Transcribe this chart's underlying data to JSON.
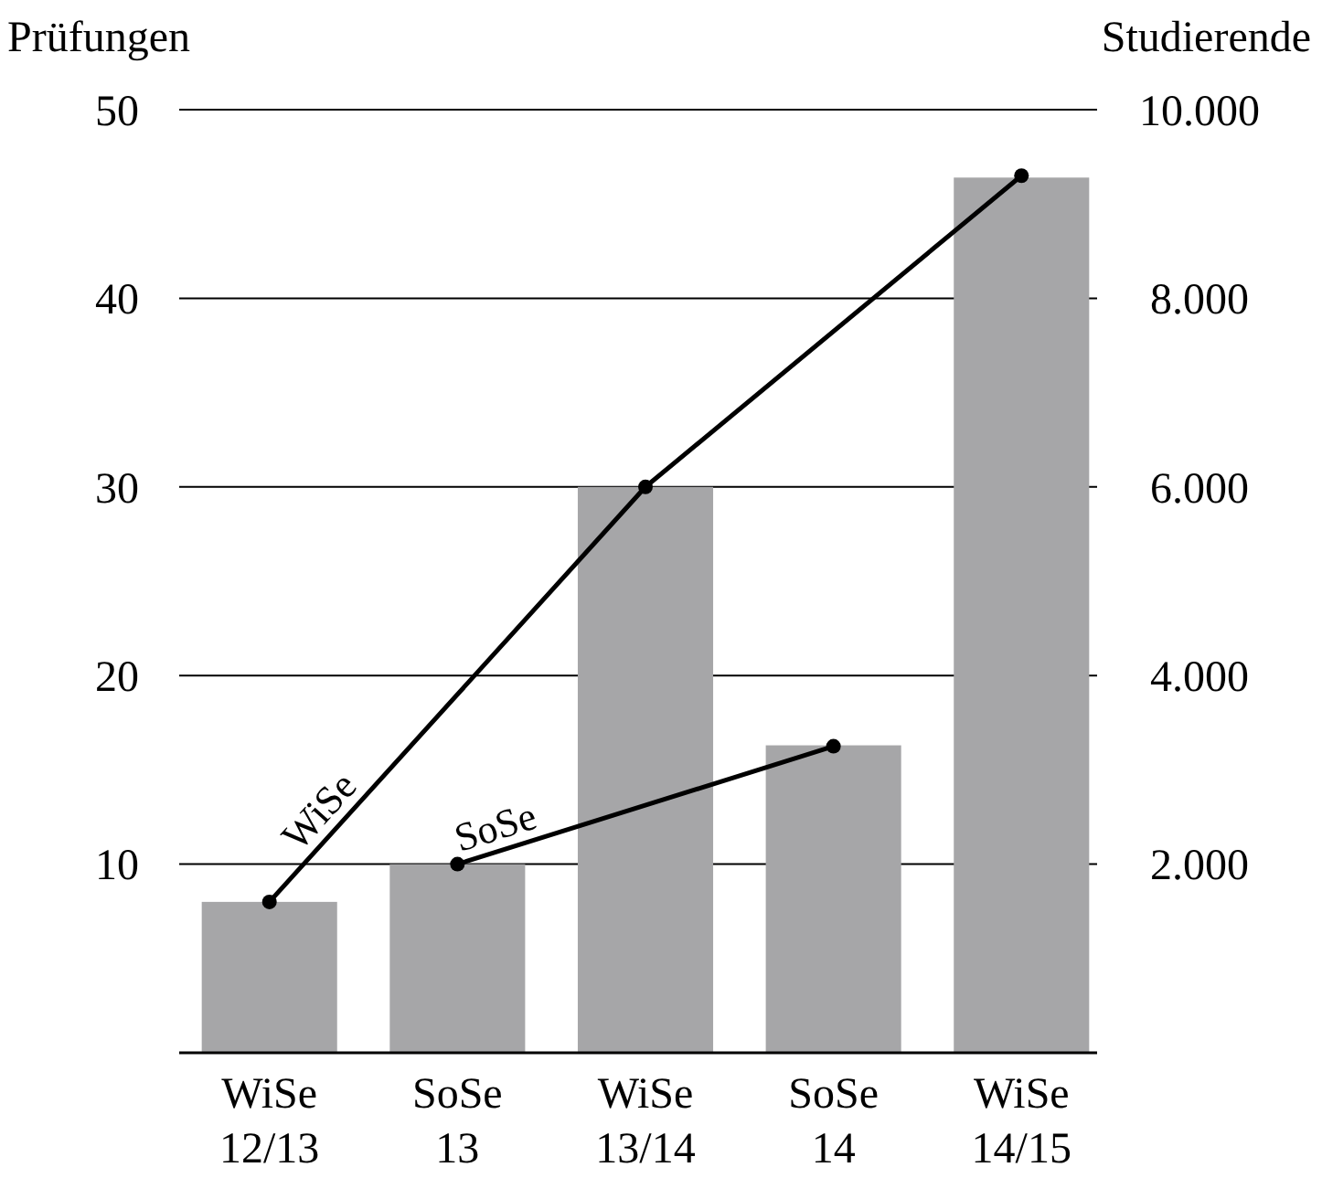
{
  "chart_data": {
    "type": "bar",
    "ylabel": "Prüfungen",
    "y2label": "Studierende",
    "categories": [
      "WiSe 12/13",
      "SoSe 13",
      "WiSe 13/14",
      "SoSe 14",
      "WiSe 14/15"
    ],
    "series": [
      {
        "color": "#a6a6a8",
        "values": [
          8,
          10,
          30,
          16.3,
          46.4
        ]
      },
      {
        "type": "line",
        "name": "WiSe",
        "axis": "y2",
        "color": "#000000",
        "x": [
          "WiSe 12/13",
          "WiSe 13/14",
          "WiSe 14/15"
        ],
        "values": [
          1600,
          6000,
          9300
        ]
      },
      {
        "type": "line",
        "name": "SoSe",
        "axis": "y2",
        "color": "#000000",
        "x": [
          "SoSe 13",
          "SoSe 14"
        ],
        "values": [
          2000,
          3250
        ]
      }
    ],
    "ylim": [
      0,
      50
    ],
    "yticks": [
      10,
      20,
      30,
      40,
      50
    ],
    "y2lim": [
      0,
      10000
    ],
    "y2ticks": [
      {
        "value": 2000,
        "label": "2.000"
      },
      {
        "value": 4000,
        "label": "4.000"
      },
      {
        "value": 6000,
        "label": "6.000"
      },
      {
        "value": 8000,
        "label": "8.000"
      },
      {
        "value": 10000,
        "label": "10.000"
      }
    ],
    "grid": "y",
    "marker": "circle",
    "line_style": "solid"
  }
}
